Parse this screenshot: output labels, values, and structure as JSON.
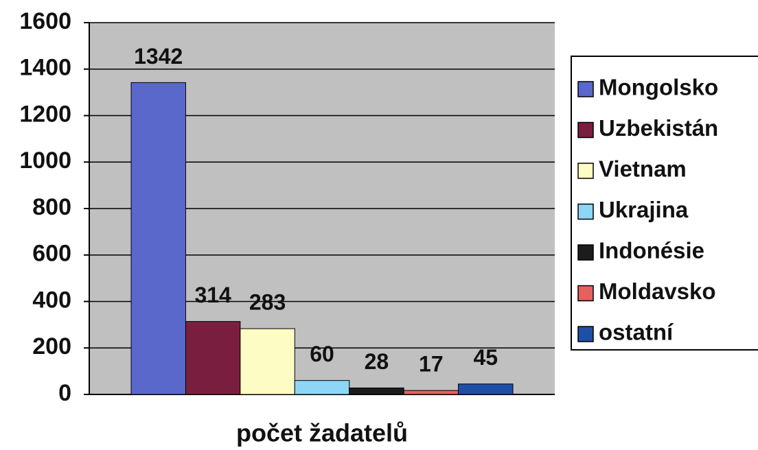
{
  "chart_data": {
    "type": "bar",
    "categories": [
      "počet žadatelů"
    ],
    "series": [
      {
        "name": "Mongolsko",
        "color": "#5a68cc",
        "values": [
          1342
        ]
      },
      {
        "name": "Uzbekistán",
        "color": "#7a1e40",
        "values": [
          314
        ]
      },
      {
        "name": "Vietnam",
        "color": "#fdfcc4",
        "values": [
          283
        ]
      },
      {
        "name": "Ukrajina",
        "color": "#8ed6f6",
        "values": [
          60
        ]
      },
      {
        "name": "Indonésie",
        "color": "#1c1c1c",
        "values": [
          28
        ]
      },
      {
        "name": "Moldavsko",
        "color": "#e6605e",
        "values": [
          17
        ]
      },
      {
        "name": "ostatní",
        "color": "#1f4ea6",
        "values": [
          45
        ]
      }
    ],
    "ylim": [
      0,
      1600
    ],
    "yticks": [
      0,
      200,
      400,
      600,
      800,
      1000,
      1200,
      1400,
      1600
    ],
    "grid": true,
    "legend": "right"
  }
}
